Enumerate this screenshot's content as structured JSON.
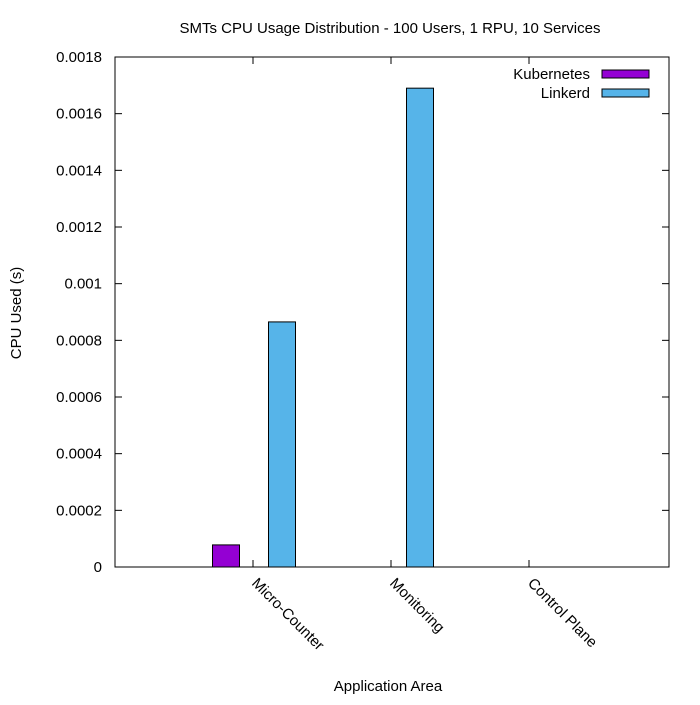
{
  "chart_data": {
    "type": "bar",
    "title": "SMTs CPU Usage Distribution - 100 Users, 1 RPU, 10 Services",
    "xlabel": "Application Area",
    "ylabel": "CPU Used (s)",
    "categories": [
      "Micro-Counter",
      "Monitoring",
      "Control Plane"
    ],
    "series": [
      {
        "name": "Kubernetes",
        "color": "#9400d3",
        "values": [
          7.8e-05,
          0,
          0
        ]
      },
      {
        "name": "Linkerd",
        "color": "#56b4e9",
        "values": [
          0.000865,
          0.00169,
          0
        ]
      }
    ],
    "ylim": [
      0,
      0.0018
    ],
    "yticks": [
      "0",
      "0.0002",
      "0.0004",
      "0.0006",
      "0.0008",
      "0.001",
      "0.0012",
      "0.0014",
      "0.0016",
      "0.0018"
    ],
    "grid": false,
    "legend_position": "top-right"
  }
}
